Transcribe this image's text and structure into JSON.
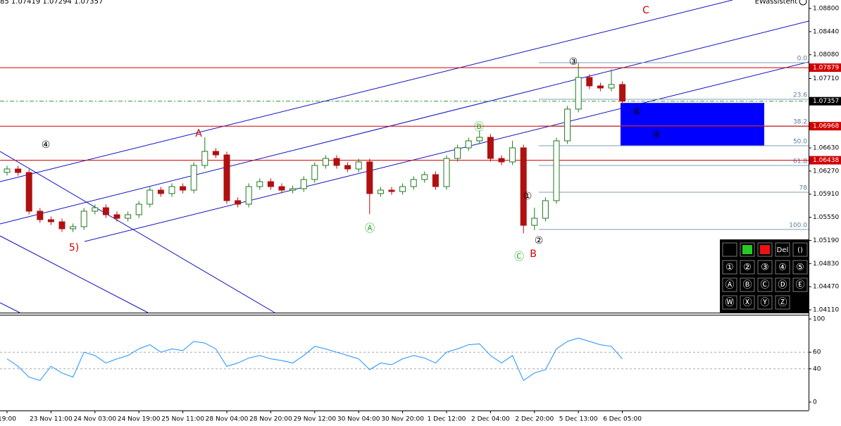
{
  "header_left": "85 1.07419 1.07294 1.07357",
  "header_right": "EWassistent",
  "panel": {
    "rows": [
      [
        "Del",
        "()"
      ],
      [
        "①",
        "②",
        "③",
        "④",
        "⑤"
      ],
      [
        "Ⓐ",
        "Ⓑ",
        "Ⓒ",
        "Ⓓ",
        "Ⓔ"
      ],
      [
        "Ⓦ",
        "Ⓧ",
        "Ⓨ",
        "Ⓩ"
      ]
    ]
  },
  "chart_data": [
    {
      "type": "candlestick",
      "categories": [
        "19:00",
        null,
        null,
        null,
        "23 Nov 11:00",
        null,
        null,
        null,
        "24 Nov 03:00",
        null,
        null,
        null,
        "24 Nov 19:00",
        null,
        null,
        null,
        "25 Nov 11:00",
        null,
        null,
        null,
        "28 Nov 04:00",
        null,
        null,
        null,
        "28 Nov 20:00",
        null,
        null,
        null,
        "29 Nov 12:00",
        null,
        null,
        null,
        "30 Nov 04:00",
        null,
        null,
        null,
        "30 Nov 20:00",
        null,
        null,
        null,
        "1 Dec 12:00",
        null,
        null,
        null,
        "2 Dec 04:00",
        null,
        null,
        null,
        "2 Dec 20:00",
        null,
        null,
        null,
        "5 Dec 13:00",
        null,
        null,
        null,
        "6 Dec 05:00"
      ],
      "open": [
        1.0625,
        1.06302,
        1.06247,
        1.05645,
        1.05513,
        1.0548,
        1.05371,
        1.05404,
        1.05645,
        1.05699,
        1.0559,
        1.05535,
        1.0559,
        1.05754,
        1.05973,
        1.05919,
        1.06028,
        1.05973,
        1.06357,
        1.06576,
        1.06521,
        1.05809,
        1.05754,
        1.06028,
        1.06105,
        1.06028,
        1.05973,
        1.05995,
        1.06138,
        1.06357,
        1.06466,
        1.06357,
        1.06302,
        1.06412,
        1.05919,
        1.05973,
        1.05951,
        1.06028,
        1.06138,
        1.06214,
        1.06028,
        1.06466,
        1.06631,
        1.0674,
        1.06795,
        1.06466,
        1.06412,
        1.06631,
        1.05425,
        1.05535,
        1.05809,
        1.0674,
        1.07234,
        1.07727,
        1.07595,
        1.07562,
        1.07617
      ],
      "high": [
        1.06352,
        1.06352,
        1.06297,
        1.05695,
        1.05563,
        1.0553,
        1.05454,
        1.05695,
        1.05749,
        1.05749,
        1.0564,
        1.0564,
        1.05804,
        1.06023,
        1.06023,
        1.06078,
        1.06078,
        1.06407,
        1.06795,
        1.06626,
        1.06571,
        1.05859,
        1.06078,
        1.06155,
        1.06155,
        1.06078,
        1.06045,
        1.06188,
        1.06407,
        1.06516,
        1.06516,
        1.06407,
        1.06462,
        1.06462,
        1.06023,
        1.06023,
        1.06078,
        1.06188,
        1.06264,
        1.06264,
        1.06516,
        1.06681,
        1.0679,
        1.069,
        1.06845,
        1.06516,
        1.0674,
        1.06681,
        1.057,
        1.05859,
        1.0679,
        1.07284,
        1.0795,
        1.07777,
        1.07645,
        1.0785,
        1.07667
      ],
      "low": [
        1.062,
        1.06197,
        1.05595,
        1.05463,
        1.0543,
        1.05321,
        1.05321,
        1.05354,
        1.05595,
        1.0554,
        1.05485,
        1.05485,
        1.0554,
        1.05704,
        1.05869,
        1.05869,
        1.05923,
        1.05923,
        1.06307,
        1.06471,
        1.05759,
        1.05704,
        1.05704,
        1.05978,
        1.05978,
        1.05923,
        1.05923,
        1.05945,
        1.06088,
        1.06307,
        1.06307,
        1.06252,
        1.06252,
        1.056,
        1.05869,
        1.05901,
        1.05901,
        1.05978,
        1.06088,
        1.05978,
        1.05978,
        1.06416,
        1.06581,
        1.0669,
        1.06416,
        1.06362,
        1.06362,
        1.053,
        1.0535,
        1.05485,
        1.05759,
        1.0669,
        1.07184,
        1.07545,
        1.07512,
        1.07512,
        1.07307
      ],
      "close": [
        1.06302,
        1.06247,
        1.05645,
        1.05513,
        1.0548,
        1.05371,
        1.05404,
        1.05645,
        1.05699,
        1.0559,
        1.05535,
        1.0559,
        1.05754,
        1.05973,
        1.05919,
        1.06028,
        1.05973,
        1.06357,
        1.06576,
        1.06521,
        1.05809,
        1.05754,
        1.06028,
        1.06105,
        1.06028,
        1.05973,
        1.05995,
        1.06138,
        1.06357,
        1.06466,
        1.06357,
        1.06302,
        1.06412,
        1.05919,
        1.05973,
        1.05951,
        1.06028,
        1.06138,
        1.06214,
        1.06028,
        1.06466,
        1.06631,
        1.0674,
        1.06795,
        1.06466,
        1.06412,
        1.06631,
        1.05425,
        1.05535,
        1.05809,
        1.0674,
        1.07234,
        1.07727,
        1.07595,
        1.07562,
        1.07617,
        1.07357
      ],
      "up_color": "#1f7a1f",
      "down_color": "#b01010",
      "ylim": [
        1.04066,
        1.08932
      ],
      "yticks": [
        {
          "value": 1.088,
          "label": "1.08800"
        },
        {
          "value": 1.0844,
          "label": "1.08440"
        },
        {
          "value": 1.0808,
          "label": "1.08080"
        },
        {
          "value": 1.0771,
          "label": "1.07710"
        },
        {
          "value": 1.0663,
          "label": "1.06630"
        },
        {
          "value": 1.0627,
          "label": "1.06270"
        },
        {
          "value": 1.0591,
          "label": "1.05910"
        },
        {
          "value": 1.0555,
          "label": "1.05550"
        },
        {
          "value": 1.0519,
          "label": "1.05190"
        },
        {
          "value": 1.0483,
          "label": "1.04830"
        },
        {
          "value": 1.0447,
          "label": "1.04470"
        },
        {
          "value": 1.0411,
          "label": "1.04110"
        }
      ],
      "levels": [
        {
          "value": 1.07879,
          "color": "#d00000"
        },
        {
          "value": 1.07357,
          "color": "#000000"
        },
        {
          "value": 1.06968,
          "color": "#d00000"
        },
        {
          "value": 1.06438,
          "color": "#d00000"
        }
      ],
      "fib_levels": [
        {
          "label": "0.0",
          "value": 1.07957
        },
        {
          "label": "23.6",
          "value": 1.07387
        },
        {
          "label": "38.2",
          "value": 1.06971
        },
        {
          "label": "50.0",
          "value": 1.06664
        },
        {
          "label": "61.8",
          "value": 1.06357
        },
        {
          "label": "78",
          "value": 1.0594
        },
        {
          "label": "100.0",
          "value": 1.0536
        }
      ],
      "target_zone": [
        1.0733,
        1.0666
      ],
      "annotations": [
        {
          "text": "④",
          "color": "#000000"
        },
        {
          "text": "A",
          "color": "#d00000"
        },
        {
          "text": "5)",
          "color": "#d00000"
        },
        {
          "text": "Ⓐ",
          "color": "#22aa22"
        },
        {
          "text": "Ⓑ",
          "color": "#22aa22"
        },
        {
          "text": "①",
          "color": "#000000"
        },
        {
          "text": "Ⓒ",
          "color": "#22aa22"
        },
        {
          "text": "B",
          "color": "#d00000"
        },
        {
          "text": "②",
          "color": "#000000"
        },
        {
          "text": "③",
          "color": "#000000"
        },
        {
          "text": "④",
          "color": "#000000"
        },
        {
          "text": "④",
          "color": "#000000"
        },
        {
          "text": "C",
          "color": "#d00000"
        }
      ]
    },
    {
      "type": "line",
      "values": [
        52,
        43,
        30,
        26,
        43,
        35,
        30,
        60,
        56,
        47,
        52,
        56,
        64,
        69,
        60,
        64,
        62,
        73,
        71,
        64,
        43,
        47,
        53,
        56,
        52,
        50,
        47,
        56,
        67,
        64,
        60,
        56,
        52,
        39,
        47,
        45,
        52,
        56,
        53,
        47,
        60,
        64,
        69,
        70,
        56,
        47,
        56,
        26,
        35,
        39,
        64,
        73,
        77,
        73,
        69,
        67,
        52
      ],
      "color": "#1e90ff",
      "ylim": [
        -10.2,
        105.1
      ],
      "yticks": [
        0,
        40,
        60,
        100
      ],
      "grid_ticks": [
        40,
        60
      ]
    }
  ]
}
